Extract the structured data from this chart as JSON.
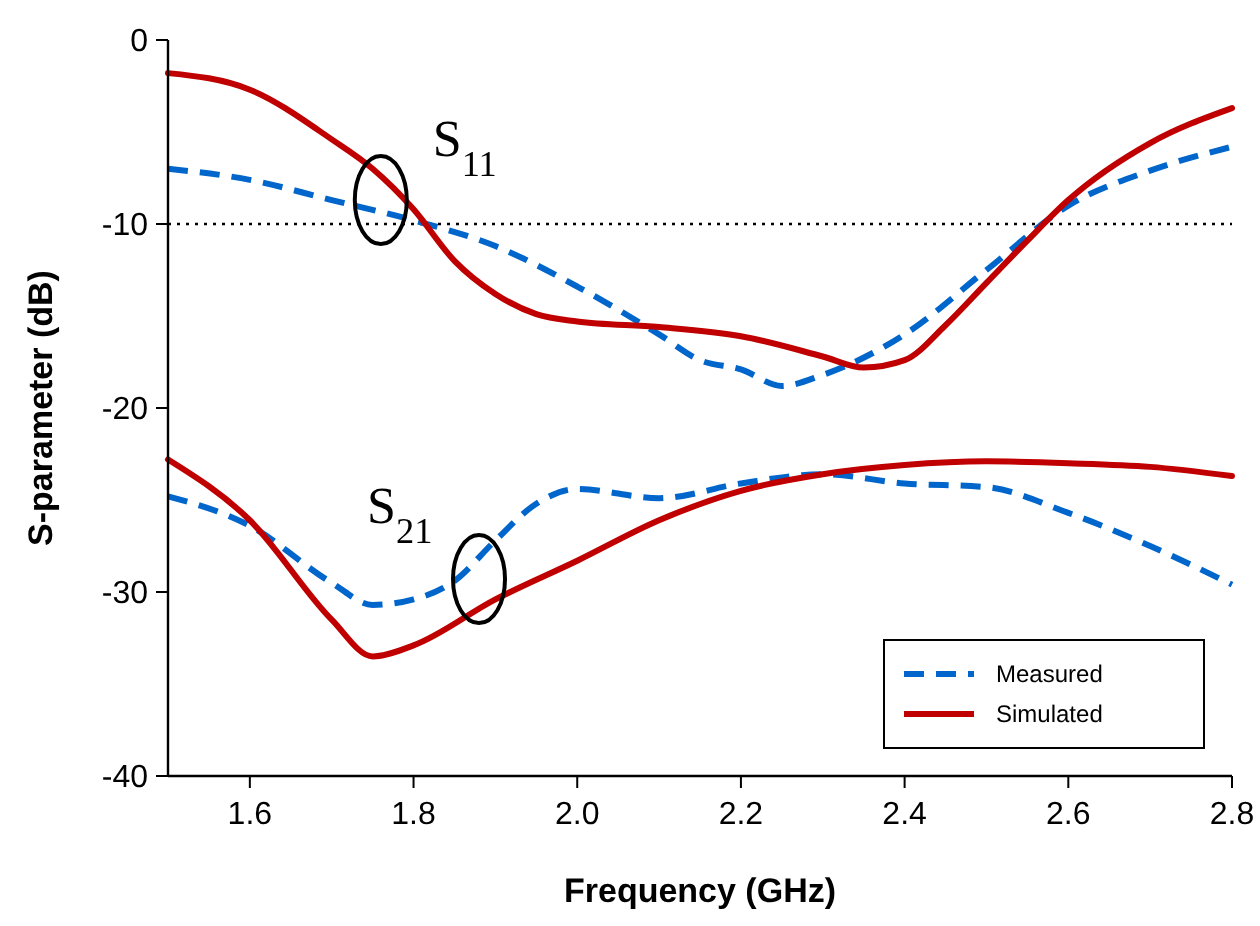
{
  "chart_data": {
    "type": "line",
    "xlabel": "Frequency (GHz)",
    "ylabel": "S-parameter (dB)",
    "xlim": [
      1.5,
      2.8
    ],
    "xticks": [
      1.6,
      1.8,
      {
        "value": 2,
        "label": "2.0"
      },
      2.2,
      2.4,
      2.6,
      2.8
    ],
    "ylim": [
      -40,
      0
    ],
    "yticks": [
      -40,
      -30,
      -20,
      -10,
      0
    ],
    "grid": false,
    "legend": "bottom right",
    "ref_lines": [
      {
        "axis": "y",
        "value": -10,
        "color": "#000000",
        "line_style": "dotted"
      }
    ],
    "annotations": [
      {
        "text": "S$_{11}$",
        "x": 1.76,
        "y": -8.7
      },
      {
        "text": "S$_{21}$",
        "x": 1.88,
        "y": -29.3
      }
    ],
    "series": [
      {
        "name": "Measured",
        "color": "#0066cc",
        "line_style": "dashed",
        "x": [
          1.5,
          1.6,
          1.7,
          1.8,
          1.9,
          2.0,
          2.1,
          2.15,
          2.2,
          2.25,
          2.3,
          2.4,
          2.5,
          2.6,
          2.7,
          2.8
        ],
        "values": [
          -7.0,
          -7.6,
          -8.7,
          -9.8,
          -11.2,
          -13.4,
          -16,
          -17.4,
          -17.9,
          -18.8,
          -18.2,
          -16,
          -12.5,
          -9.0,
          -7.1,
          -5.8
        ]
      },
      {
        "name": "Simulated",
        "color": "#c00000",
        "line_style": "solid",
        "x": [
          1.5,
          1.6,
          1.7,
          1.75,
          1.8,
          1.85,
          1.9,
          1.95,
          2.0,
          2.1,
          2.2,
          2.3,
          2.35,
          2.4,
          2.45,
          2.5,
          2.55,
          2.6,
          2.7,
          2.8
        ],
        "values": [
          -1.8,
          -2.7,
          -5.4,
          -7,
          -9.2,
          -12,
          -13.8,
          -14.9,
          -15.3,
          -15.6,
          -16.1,
          -17.2,
          -17.8,
          -17.4,
          -15.5,
          -13.2,
          -10.9,
          -8.7,
          -5.6,
          -3.7
        ]
      },
      {
        "color": "#0066cc",
        "line_style": "dashed",
        "x": [
          1.5,
          1.6,
          1.7,
          1.75,
          1.8,
          1.85,
          1.9,
          1.95,
          2.0,
          2.1,
          2.2,
          2.3,
          2.4,
          2.5,
          2.6,
          2.7,
          2.8
        ],
        "values": [
          -24.8,
          -26.4,
          -29.5,
          -30.7,
          -30.4,
          -29.4,
          -27.2,
          -25.2,
          -24.4,
          -24.9,
          -24.1,
          -23.6,
          -24.1,
          -24.3,
          -25.7,
          -27.5,
          -29.6
        ]
      },
      {
        "color": "#c00000",
        "line_style": "solid",
        "x": [
          1.5,
          1.6,
          1.7,
          1.75,
          1.8,
          1.9,
          2.0,
          2.1,
          2.2,
          2.3,
          2.4,
          2.5,
          2.6,
          2.7,
          2.8
        ],
        "values": [
          -22.8,
          -26.1,
          -31.5,
          -33.5,
          -32.9,
          -30.4,
          -28.3,
          -26.1,
          -24.5,
          -23.6,
          -23.1,
          -22.9,
          -23.0,
          -23.2,
          -23.7
        ]
      }
    ]
  }
}
